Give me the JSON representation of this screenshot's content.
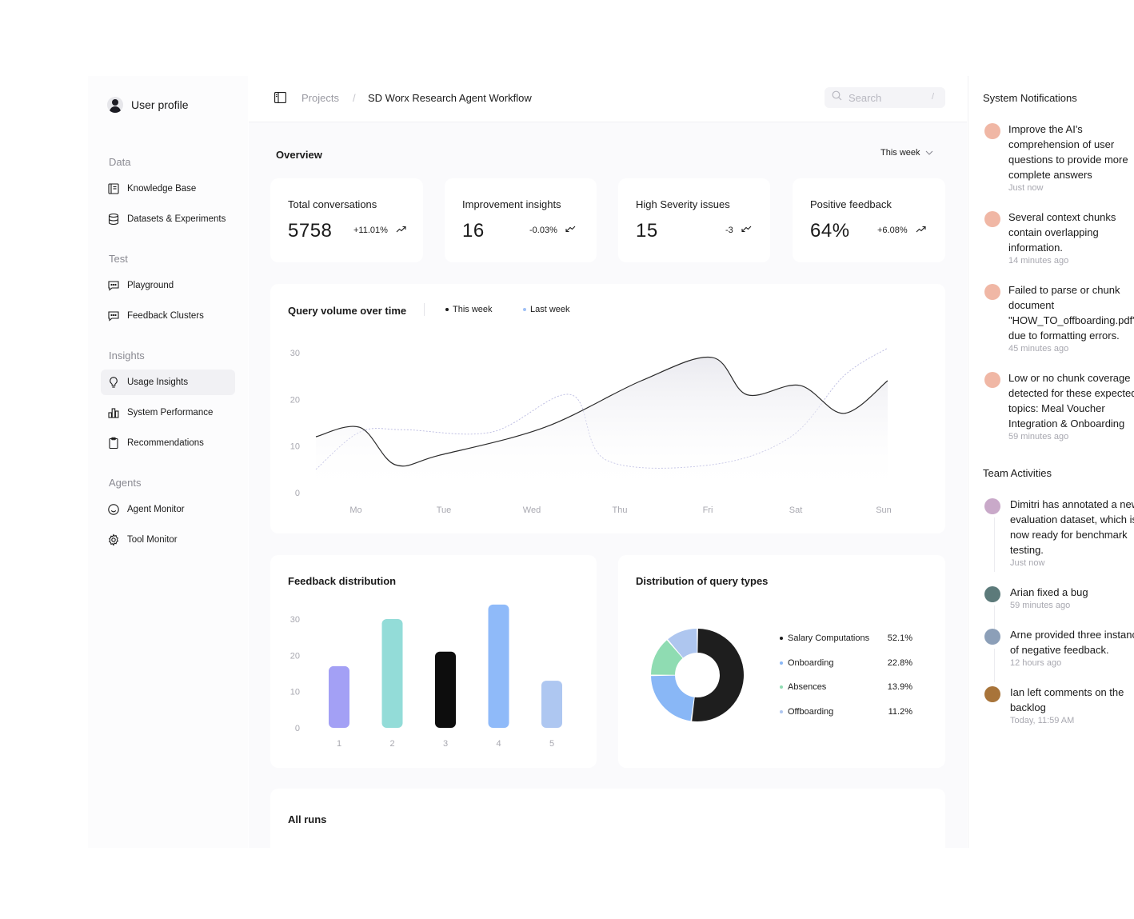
{
  "sidebar": {
    "profile": "User profile",
    "sections": [
      {
        "title": "Data",
        "items": [
          "Knowledge Base",
          "Datasets & Experiments"
        ]
      },
      {
        "title": "Test",
        "items": [
          "Playground",
          "Feedback Clusters"
        ]
      },
      {
        "title": "Insights",
        "items": [
          "Usage Insights",
          "System Performance",
          "Recommendations"
        ]
      },
      {
        "title": "Agents",
        "items": [
          "Agent Monitor",
          "Tool Monitor"
        ]
      }
    ],
    "active_item": "Usage Insights"
  },
  "header": {
    "breadcrumb": [
      "Projects",
      "SD Worx Research Agent Workflow"
    ],
    "search_placeholder": "Search",
    "search_shortcut": "/"
  },
  "overview": {
    "title": "Overview",
    "period": "This week",
    "stats": [
      {
        "label": "Total conversations",
        "value": "5758",
        "delta": "+11.01%",
        "trend": "up"
      },
      {
        "label": "Improvement insights",
        "value": "16",
        "delta": "-0.03%",
        "trend": "down"
      },
      {
        "label": "High Severity issues",
        "value": "15",
        "delta": "-3",
        "trend": "down"
      },
      {
        "label": "Positive feedback",
        "value": "64%",
        "delta": "+6.08%",
        "trend": "up"
      }
    ]
  },
  "query_volume": {
    "title": "Query volume over time",
    "legend_this": "This week",
    "legend_last": "Last week"
  },
  "feedback_distribution": {
    "title": "Feedback distribution"
  },
  "query_types": {
    "title": "Distribution of query types"
  },
  "all_runs": {
    "title": "All runs"
  },
  "chart_data": [
    {
      "type": "line",
      "title": "Query volume over time",
      "x": [
        "Mo",
        "Tue",
        "Wed",
        "Thu",
        "Fri",
        "Sat",
        "Sun"
      ],
      "ylim": [
        0,
        30
      ],
      "yticks": [
        0,
        10,
        20,
        30
      ],
      "series": [
        {
          "name": "This week",
          "x": [
            0,
            0.5,
            0.9,
            1.4,
            2.6,
            3.7,
            4.5,
            4.9,
            5.5,
            6.0,
            6.5
          ],
          "values": [
            12,
            14,
            6,
            8,
            14,
            24,
            29,
            21,
            23,
            17,
            24
          ],
          "color": "#2b2b2b",
          "style": "solid"
        },
        {
          "name": "Last week",
          "x": [
            0,
            0.5,
            1.0,
            2.0,
            2.9,
            3.3,
            4.5,
            5.4,
            6.0,
            6.5
          ],
          "values": [
            5,
            13,
            13.5,
            13,
            21,
            7,
            6,
            12,
            25,
            31
          ],
          "color": "#b9b9e0",
          "style": "dashed"
        }
      ],
      "grid": false
    },
    {
      "type": "bar",
      "title": "Feedback distribution",
      "categories": [
        "1",
        "2",
        "3",
        "4",
        "5"
      ],
      "values": [
        17,
        30,
        21,
        34,
        13
      ],
      "colors": [
        "#a3a0f5",
        "#93dcd8",
        "#0d0d0d",
        "#8fbaf9",
        "#aec7f1"
      ],
      "ylim": [
        0,
        30
      ],
      "yticks": [
        0,
        10,
        20,
        30
      ]
    },
    {
      "type": "pie",
      "title": "Distribution of query types",
      "labels": [
        "Salary Computations",
        "Onboarding",
        "Absences",
        "Offboarding"
      ],
      "values": [
        52.1,
        22.8,
        13.9,
        11.2
      ],
      "display": [
        "52.1%",
        "22.8%",
        "13.9%",
        "11.2%"
      ],
      "colors": [
        "#1e1e1e",
        "#89b7f6",
        "#8fdcb2",
        "#aec6ef"
      ]
    }
  ],
  "notifications": {
    "title": "System Notifications",
    "items": [
      {
        "text": "Improve the AI's comprehension of user questions to provide more complete answers",
        "time": "Just now"
      },
      {
        "text": "Several context chunks contain overlapping information.",
        "time": "14 minutes ago"
      },
      {
        "text": "Failed to parse or chunk document \"HOW_TO_offboarding.pdf\" due to formatting errors.",
        "time": "45 minutes ago"
      },
      {
        "text": "Low or no chunk coverage detected for these expected topics: Meal Voucher Integration & Onboarding",
        "time": "59 minutes ago"
      }
    ]
  },
  "team": {
    "title": "Team Activities",
    "items": [
      {
        "text": "Dimitri has annotated a new evaluation dataset, which is now ready for benchmark testing.",
        "time": "Just now",
        "avatar_color": "#c9a9c9"
      },
      {
        "text": "Arian fixed a bug",
        "time": "59 minutes ago",
        "avatar_color": "#5c7a7a"
      },
      {
        "text": "Arne provided three instances of negative feedback.",
        "time": "12 hours ago",
        "avatar_color": "#8c9fb8"
      },
      {
        "text": "Ian left comments on the backlog",
        "time": "Today, 11:59 AM",
        "avatar_color": "#a8743a"
      }
    ]
  }
}
